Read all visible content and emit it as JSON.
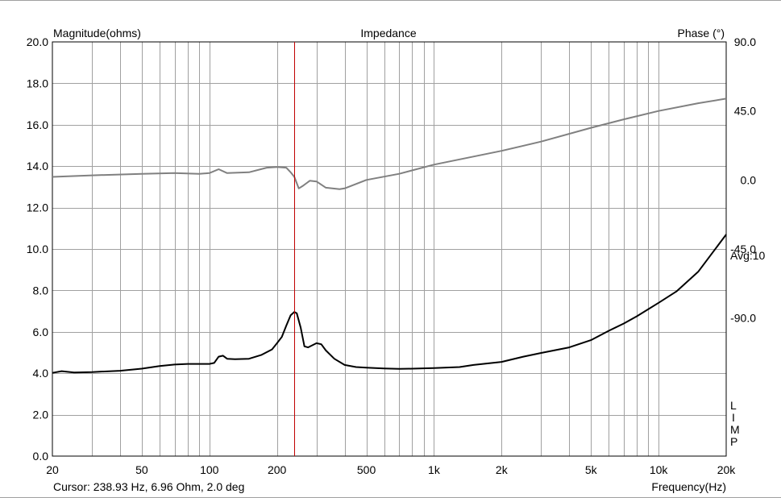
{
  "chart_data": {
    "type": "line",
    "title": "Impedance",
    "ylabel_left": "Magnitude(ohms)",
    "ylabel_right": "Phase (°)",
    "xlabel": "Frequency(Hz)",
    "x_scale": "log",
    "xlim": [
      20,
      20000
    ],
    "ylim_left": [
      0,
      20
    ],
    "ylim_right": [
      -180,
      90
    ],
    "grid": true,
    "x_ticks": [
      {
        "value": 20,
        "label": "20"
      },
      {
        "value": 50,
        "label": "50"
      },
      {
        "value": 100,
        "label": "100"
      },
      {
        "value": 200,
        "label": "200"
      },
      {
        "value": 500,
        "label": "500"
      },
      {
        "value": 1000,
        "label": "1k"
      },
      {
        "value": 2000,
        "label": "2k"
      },
      {
        "value": 5000,
        "label": "5k"
      },
      {
        "value": 10000,
        "label": "10k"
      },
      {
        "value": 20000,
        "label": "20k"
      }
    ],
    "y_ticks_left": [
      "0.0",
      "2.0",
      "4.0",
      "6.0",
      "8.0",
      "10.0",
      "12.0",
      "14.0",
      "16.0",
      "18.0",
      "20.0"
    ],
    "y_ticks_right": [
      {
        "value": 90,
        "label": "90.0"
      },
      {
        "value": 45,
        "label": "45.0"
      },
      {
        "value": 0,
        "label": "0.0"
      },
      {
        "value": -45,
        "label": "-45.0"
      },
      {
        "value": -90,
        "label": "-90.0"
      }
    ],
    "annotations": {
      "avg": "Avg:10",
      "legend_letters": [
        "L",
        "I",
        "M",
        "P"
      ]
    },
    "cursor": {
      "x": 238.93,
      "color": "#c00000"
    },
    "series": [
      {
        "axis": "left",
        "color": "#000000",
        "x": [
          20,
          22,
          25,
          30,
          40,
          50,
          60,
          70,
          80,
          90,
          100,
          105,
          110,
          115,
          120,
          130,
          150,
          170,
          190,
          200,
          210,
          220,
          230,
          238.93,
          245,
          255,
          265,
          275,
          300,
          315,
          330,
          360,
          400,
          450,
          500,
          600,
          700,
          800,
          1000,
          1300,
          1500,
          2000,
          2500,
          3000,
          4000,
          5000,
          6000,
          7000,
          8000,
          10000,
          12000,
          15000,
          20000
        ],
        "values": [
          4.02,
          4.1,
          4.04,
          4.06,
          4.12,
          4.22,
          4.35,
          4.42,
          4.45,
          4.45,
          4.45,
          4.5,
          4.8,
          4.85,
          4.7,
          4.68,
          4.7,
          4.88,
          5.15,
          5.45,
          5.75,
          6.3,
          6.8,
          6.96,
          6.9,
          6.2,
          5.3,
          5.25,
          5.45,
          5.4,
          5.1,
          4.7,
          4.4,
          4.3,
          4.27,
          4.23,
          4.21,
          4.22,
          4.25,
          4.3,
          4.4,
          4.55,
          4.8,
          4.98,
          5.25,
          5.6,
          6.05,
          6.4,
          6.75,
          7.4,
          7.95,
          8.9,
          10.7
        ]
      },
      {
        "axis": "right",
        "color": "#808080",
        "x": [
          20,
          30,
          50,
          70,
          90,
          100,
          110,
          120,
          150,
          180,
          200,
          220,
          230,
          238.93,
          250,
          260,
          280,
          300,
          330,
          380,
          400,
          500,
          700,
          1000,
          2000,
          3000,
          5000,
          7000,
          10000,
          15000,
          20000
        ],
        "values": [
          2.0,
          3.0,
          4.0,
          4.5,
          4.0,
          4.5,
          7.0,
          4.5,
          5.0,
          8.0,
          8.5,
          8.0,
          5.0,
          2.0,
          -5.5,
          -4.0,
          -0.5,
          -1.0,
          -5.0,
          -6.0,
          -5.5,
          0.0,
          4.0,
          10.0,
          19.0,
          25.0,
          34.0,
          39.5,
          45.0,
          50.0,
          53.0
        ]
      }
    ]
  },
  "status_bar": {
    "cursor_readout": "Cursor: 238.93 Hz, 6.96 Ohm, 2.0 deg"
  }
}
